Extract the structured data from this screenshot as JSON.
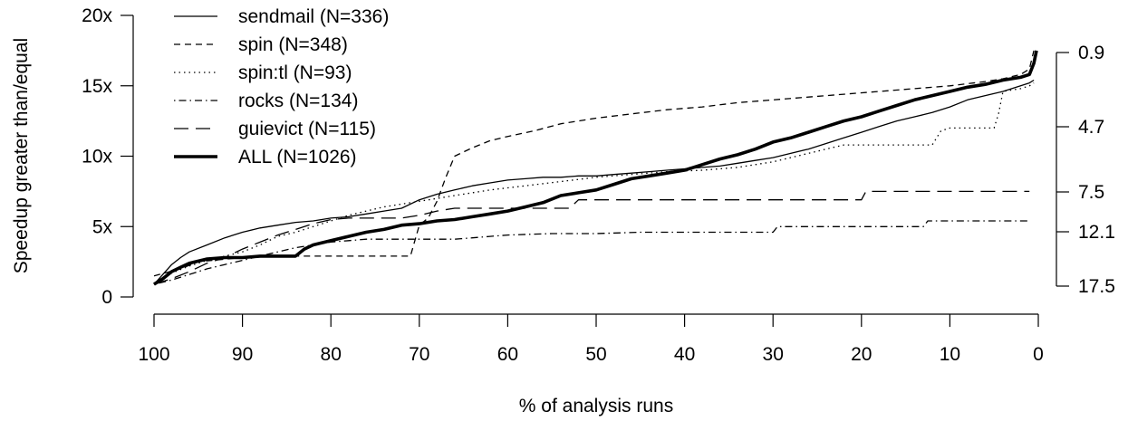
{
  "chart_data": {
    "type": "line",
    "title": "",
    "xlabel": "% of analysis runs",
    "ylabel": "Speedup greater than/equal",
    "xlim": [
      100,
      0
    ],
    "ylim": [
      0,
      20
    ],
    "x_ticks": [
      "100",
      "90",
      "80",
      "70",
      "60",
      "50",
      "40",
      "30",
      "20",
      "10",
      "0"
    ],
    "x_tick_values": [
      100,
      90,
      80,
      70,
      60,
      50,
      40,
      30,
      20,
      10,
      0
    ],
    "y_ticks": [
      "0",
      "5x",
      "10x",
      "15x",
      "20x"
    ],
    "y_tick_values": [
      0,
      5,
      10,
      15,
      20
    ],
    "right_ticks": [
      "0.9",
      "4.7",
      "7.5",
      "12.1",
      "17.5"
    ],
    "right_tick_values": [
      0.9,
      4.7,
      7.5,
      12.1,
      17.5
    ],
    "legend_position": "top-left",
    "series": [
      {
        "name": "sendmail (N=336)",
        "style": "solid",
        "x": [
          100,
          99,
          98,
          97,
          96,
          94,
          92,
          90,
          88,
          86,
          84,
          82,
          80,
          78,
          76,
          74,
          72,
          70,
          68,
          66,
          64,
          62,
          60,
          58,
          56,
          54,
          52,
          50,
          48,
          46,
          44,
          42,
          40,
          38,
          36,
          34,
          32,
          30,
          28,
          26,
          24,
          22,
          20,
          18,
          16,
          14,
          12,
          10,
          8,
          6,
          4,
          3,
          2,
          1,
          0.5
        ],
        "y": [
          0.9,
          1.6,
          2.3,
          2.8,
          3.2,
          3.7,
          4.2,
          4.6,
          4.9,
          5.1,
          5.3,
          5.4,
          5.6,
          5.7,
          5.9,
          6.1,
          6.3,
          6.9,
          7.3,
          7.6,
          7.9,
          8.1,
          8.3,
          8.4,
          8.5,
          8.5,
          8.6,
          8.6,
          8.7,
          8.8,
          8.9,
          9.0,
          9.1,
          9.2,
          9.3,
          9.5,
          9.7,
          9.9,
          10.2,
          10.5,
          10.9,
          11.3,
          11.7,
          12.1,
          12.5,
          12.8,
          13.1,
          13.5,
          14.0,
          14.3,
          14.6,
          14.8,
          15.0,
          15.2,
          15.4
        ]
      },
      {
        "name": "spin (N=348)",
        "style": "dashed",
        "x": [
          100,
          97,
          95,
          90,
          85,
          80,
          75,
          72,
          71,
          70,
          69,
          68,
          67,
          66,
          64,
          62,
          60,
          57,
          54,
          50,
          46,
          42,
          38,
          34,
          30,
          26,
          22,
          18,
          14,
          10,
          6,
          4,
          2,
          1,
          0.5
        ],
        "y": [
          1.5,
          2.0,
          2.5,
          2.8,
          2.9,
          2.9,
          2.9,
          2.9,
          2.9,
          5.1,
          5.6,
          6.8,
          8.5,
          10.0,
          10.6,
          11.1,
          11.4,
          11.8,
          12.3,
          12.7,
          13.0,
          13.3,
          13.5,
          13.8,
          14.0,
          14.2,
          14.4,
          14.6,
          14.8,
          15.0,
          15.3,
          15.5,
          15.8,
          16.2,
          17.5
        ]
      },
      {
        "name": "spin:tl (N=93)",
        "style": "dotted",
        "x": [
          100,
          98,
          96,
          94,
          92,
          90,
          88,
          86,
          84,
          82,
          80,
          78,
          76,
          74,
          72,
          70,
          68,
          66,
          62,
          58,
          54,
          50,
          46,
          42,
          38,
          34,
          32,
          30,
          28,
          26,
          24,
          22,
          20,
          18,
          16,
          14,
          12,
          11,
          10,
          9,
          8,
          7,
          6,
          5,
          4.5,
          4,
          3,
          2,
          1,
          0.5
        ],
        "y": [
          0.9,
          1.7,
          2.2,
          2.6,
          2.9,
          3.2,
          3.7,
          4.3,
          4.6,
          5.0,
          5.4,
          5.8,
          6.1,
          6.4,
          6.6,
          6.8,
          7.0,
          7.2,
          7.6,
          7.9,
          8.2,
          8.5,
          8.7,
          8.9,
          9.0,
          9.2,
          9.4,
          9.6,
          9.9,
          10.2,
          10.5,
          10.8,
          10.8,
          10.8,
          10.8,
          10.8,
          10.8,
          11.8,
          12.0,
          12.0,
          12.0,
          12.0,
          12.0,
          12.0,
          13.0,
          14.6,
          14.7,
          14.8,
          15.0,
          15.2
        ]
      },
      {
        "name": "rocks (N=134)",
        "style": "dot-dash",
        "x": [
          100,
          98,
          96,
          94,
          92,
          90,
          88,
          86,
          84,
          82,
          80,
          78,
          76,
          74,
          72,
          70,
          68,
          66,
          64,
          62,
          60,
          55,
          50,
          45,
          40,
          35,
          30,
          29.5,
          25,
          20,
          15,
          13,
          12.5,
          10,
          5,
          1
        ],
        "y": [
          0.9,
          1.2,
          1.6,
          2.0,
          2.3,
          2.6,
          2.9,
          3.2,
          3.5,
          3.7,
          3.9,
          4.0,
          4.1,
          4.1,
          4.1,
          4.1,
          4.1,
          4.1,
          4.2,
          4.3,
          4.4,
          4.5,
          4.5,
          4.6,
          4.6,
          4.6,
          4.6,
          5.0,
          5.0,
          5.0,
          5.0,
          5.0,
          5.4,
          5.4,
          5.4,
          5.4
        ]
      },
      {
        "name": "guievict (N=115)",
        "style": "long-dash",
        "x": [
          100,
          98,
          96,
          94,
          92,
          90,
          88,
          86,
          84,
          82,
          80,
          78,
          76,
          74,
          72,
          70,
          68,
          66,
          64,
          62,
          60,
          58,
          56,
          54,
          53,
          52,
          50,
          45,
          40,
          35,
          30,
          25,
          20,
          19.5,
          15,
          10,
          5,
          1
        ],
        "y": [
          0.9,
          1.3,
          1.8,
          2.4,
          2.8,
          3.4,
          3.9,
          4.4,
          4.8,
          5.2,
          5.5,
          5.6,
          5.6,
          5.6,
          5.6,
          5.8,
          6.1,
          6.3,
          6.3,
          6.3,
          6.3,
          6.3,
          6.3,
          6.3,
          6.3,
          6.9,
          6.9,
          6.9,
          6.9,
          6.9,
          6.9,
          6.9,
          6.9,
          7.5,
          7.5,
          7.5,
          7.5,
          7.5
        ]
      },
      {
        "name": "ALL (N=1026)",
        "style": "thick",
        "x": [
          100,
          99,
          98,
          97,
          96,
          94,
          92,
          90,
          88,
          86,
          84,
          83,
          82,
          80,
          78,
          76,
          74,
          72,
          70,
          68,
          66,
          64,
          62,
          60,
          58,
          56,
          54,
          52,
          50,
          48,
          46,
          44,
          42,
          40,
          38,
          36,
          34,
          32,
          30,
          28,
          26,
          24,
          22,
          20,
          18,
          16,
          14,
          12,
          10,
          8,
          6,
          4,
          2,
          1,
          0.5,
          0.2
        ],
        "y": [
          0.9,
          1.3,
          1.8,
          2.1,
          2.4,
          2.7,
          2.8,
          2.8,
          2.9,
          2.9,
          2.9,
          3.4,
          3.7,
          4.0,
          4.3,
          4.6,
          4.8,
          5.1,
          5.2,
          5.4,
          5.5,
          5.7,
          5.9,
          6.1,
          6.4,
          6.7,
          7.2,
          7.4,
          7.6,
          8.0,
          8.4,
          8.6,
          8.8,
          9.0,
          9.4,
          9.8,
          10.1,
          10.5,
          11.0,
          11.3,
          11.7,
          12.1,
          12.5,
          12.8,
          13.2,
          13.6,
          14.0,
          14.3,
          14.6,
          14.9,
          15.1,
          15.4,
          15.6,
          15.8,
          16.6,
          17.5
        ]
      }
    ]
  }
}
